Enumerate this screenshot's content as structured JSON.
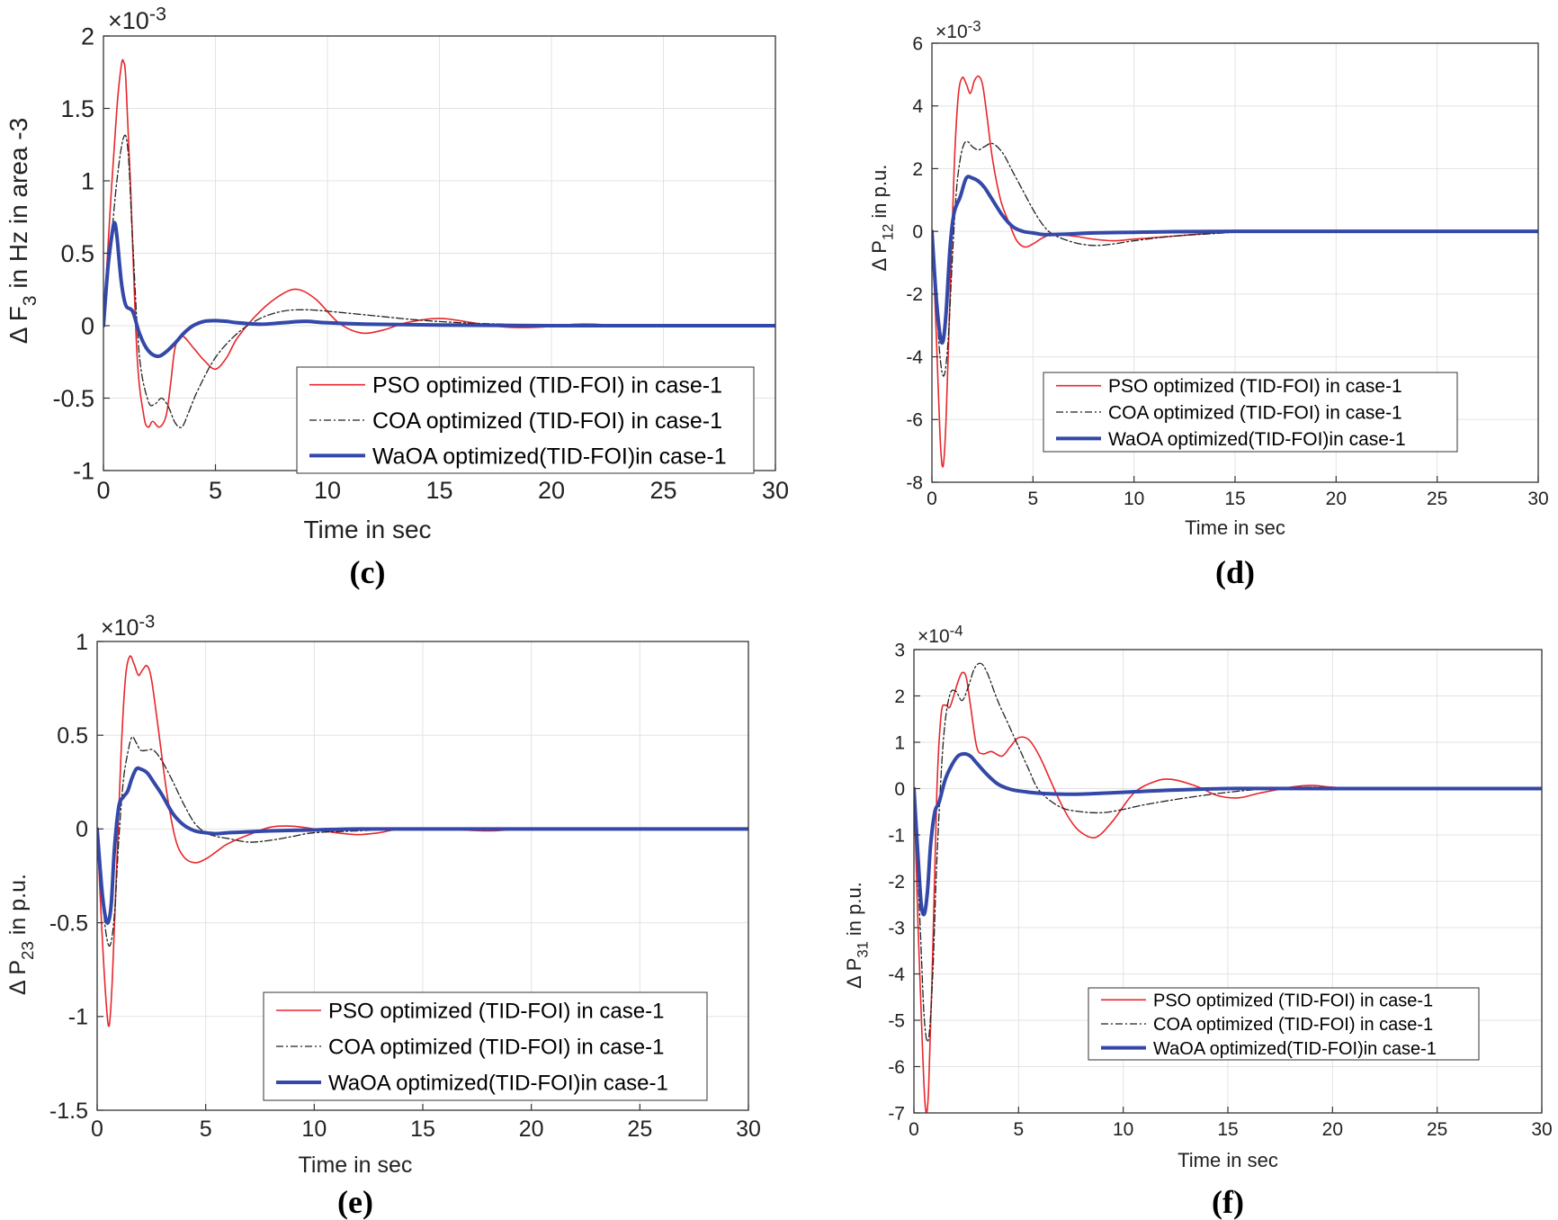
{
  "figure": {
    "panel_count": 4
  },
  "chart_data": [
    {
      "type": "line",
      "panel_label": "c",
      "ylabel_pre": "Δ F",
      "ylabel_sub": "3",
      "ylabel_post": "in Hz in area -3",
      "xlabel": "Time in sec",
      "multiplier_base": "×10",
      "multiplier_exp": "-3",
      "xlim": [
        0,
        30
      ],
      "ylim": [
        -1,
        2
      ],
      "xticks": [
        0,
        5,
        10,
        15,
        20,
        25,
        30
      ],
      "yticks": [
        -1,
        -0.5,
        0,
        0.5,
        1,
        1.5,
        2
      ],
      "ytick_labels": [
        "-1",
        "-0.5",
        "0",
        "0.5",
        "1",
        "1.5",
        "2"
      ],
      "series": [
        {
          "name": "PSO optimized (TID-FOI) in case-1",
          "color": "#e8262b",
          "dash": "",
          "width": 1.6,
          "x": [
            0,
            0.3,
            0.6,
            0.8,
            0.9,
            1.0,
            1.2,
            1.5,
            1.8,
            2.0,
            2.2,
            2.5,
            2.8,
            3.0,
            3.2,
            3.5,
            4.0,
            4.5,
            5.0,
            5.5,
            6.0,
            7.0,
            8.0,
            8.7,
            9.5,
            10.5,
            11.5,
            12.5,
            13.5,
            15,
            16.5,
            18,
            19.5,
            21,
            22,
            23,
            25,
            27,
            30
          ],
          "y": [
            0,
            0.8,
            1.5,
            1.8,
            1.82,
            1.7,
            1.0,
            -0.2,
            -0.62,
            -0.7,
            -0.66,
            -0.7,
            -0.62,
            -0.4,
            -0.15,
            -0.07,
            -0.15,
            -0.24,
            -0.3,
            -0.22,
            -0.08,
            0.1,
            0.22,
            0.25,
            0.18,
            0.02,
            -0.05,
            -0.03,
            0.02,
            0.05,
            0.02,
            -0.01,
            -0.01,
            0.01,
            0.01,
            0,
            0,
            0,
            0
          ]
        },
        {
          "name": "COA optimized (TID-FOI) in case-1",
          "color": "#222222",
          "dash": "8,3,2,3",
          "width": 1.3,
          "x": [
            0,
            0.3,
            0.6,
            0.9,
            1.1,
            1.3,
            1.6,
            2.0,
            2.3,
            2.6,
            2.9,
            3.2,
            3.5,
            3.8,
            4.2,
            5.0,
            6.0,
            7.0,
            8.0,
            9.0,
            10.0,
            12.0,
            14.0,
            16.0,
            18.0,
            20,
            22,
            25,
            30
          ],
          "y": [
            0,
            0.5,
            1.0,
            1.3,
            1.2,
            0.6,
            -0.2,
            -0.52,
            -0.54,
            -0.5,
            -0.56,
            -0.67,
            -0.7,
            -0.6,
            -0.45,
            -0.22,
            -0.05,
            0.05,
            0.1,
            0.11,
            0.1,
            0.07,
            0.04,
            0.02,
            0.01,
            0,
            0,
            0,
            0
          ]
        },
        {
          "name": "WaOA optimized(TID-FOI)in case-1",
          "color": "#3348a8",
          "dash": "",
          "width": 4,
          "x": [
            0,
            0.2,
            0.4,
            0.5,
            0.6,
            0.8,
            1.0,
            1.3,
            1.6,
            1.9,
            2.2,
            2.5,
            2.8,
            3.2,
            3.6,
            4.0,
            4.5,
            5.0,
            5.5,
            6.0,
            7.0,
            8.0,
            9.0,
            10.0,
            12.0,
            15.0,
            20,
            25,
            30
          ],
          "y": [
            0,
            0.4,
            0.65,
            0.71,
            0.62,
            0.3,
            0.14,
            0.1,
            -0.05,
            -0.15,
            -0.2,
            -0.21,
            -0.18,
            -0.12,
            -0.05,
            0,
            0.03,
            0.035,
            0.03,
            0.02,
            0.01,
            0.02,
            0.03,
            0.02,
            0.01,
            0.005,
            0,
            0,
            0
          ]
        }
      ]
    },
    {
      "type": "line",
      "panel_label": "d",
      "ylabel_pre": "Δ P",
      "ylabel_sub": "12",
      "ylabel_post": "in p.u.",
      "xlabel": "Time in sec",
      "multiplier_base": "×10",
      "multiplier_exp": "-3",
      "xlim": [
        0,
        30
      ],
      "ylim": [
        -8,
        6
      ],
      "xticks": [
        0,
        5,
        10,
        15,
        20,
        25,
        30
      ],
      "yticks": [
        -8,
        -6,
        -4,
        -2,
        0,
        2,
        4,
        6
      ],
      "ytick_labels": [
        "-8",
        "-6",
        "-4",
        "-2",
        "0",
        "2",
        "4",
        "6"
      ],
      "series": [
        {
          "name": "PSO optimized (TID-FOI) in case-1",
          "color": "#e8262b",
          "dash": "",
          "width": 1.6,
          "x": [
            0,
            0.2,
            0.4,
            0.55,
            0.7,
            0.9,
            1.1,
            1.3,
            1.5,
            1.7,
            1.9,
            2.1,
            2.3,
            2.5,
            2.7,
            3.0,
            3.4,
            3.8,
            4.2,
            4.6,
            5.0,
            5.5,
            6.0,
            7,
            8,
            9,
            10,
            12,
            14,
            16,
            18,
            22,
            30
          ],
          "y": [
            0,
            -3,
            -6.5,
            -7.5,
            -6,
            -2,
            2,
            4.3,
            4.9,
            4.7,
            4.4,
            4.8,
            4.95,
            4.7,
            3.8,
            2.3,
            1.0,
            0.3,
            -0.3,
            -0.5,
            -0.4,
            -0.2,
            -0.1,
            -0.15,
            -0.25,
            -0.3,
            -0.25,
            -0.15,
            -0.05,
            0,
            0,
            0,
            0
          ]
        },
        {
          "name": "COA optimized (TID-FOI) in case-1",
          "color": "#222222",
          "dash": "8,3,2,3",
          "width": 1.3,
          "x": [
            0,
            0.2,
            0.4,
            0.6,
            0.8,
            1.0,
            1.2,
            1.4,
            1.6,
            1.8,
            2.0,
            2.3,
            2.6,
            3.0,
            3.5,
            4.0,
            4.5,
            5.0,
            5.5,
            6.0,
            7,
            8,
            9,
            10,
            12,
            14,
            16,
            20,
            30
          ],
          "y": [
            0,
            -2,
            -4,
            -4.6,
            -3.5,
            -1,
            1.2,
            2.3,
            2.8,
            2.85,
            2.7,
            2.6,
            2.7,
            2.8,
            2.5,
            1.9,
            1.3,
            0.7,
            0.2,
            -0.1,
            -0.35,
            -0.45,
            -0.4,
            -0.3,
            -0.15,
            -0.07,
            0,
            0,
            0
          ]
        },
        {
          "name": "WaOA optimized(TID-FOI)in case-1",
          "color": "#3348a8",
          "dash": "",
          "width": 4,
          "x": [
            0,
            0.2,
            0.4,
            0.55,
            0.7,
            0.9,
            1.1,
            1.4,
            1.7,
            2.0,
            2.3,
            2.6,
            3.0,
            3.5,
            4.0,
            4.5,
            5.0,
            5.5,
            6.0,
            7,
            8,
            10,
            12,
            15,
            20,
            30
          ],
          "y": [
            0,
            -2,
            -3.3,
            -3.5,
            -2.6,
            -0.5,
            0.6,
            1.1,
            1.7,
            1.7,
            1.6,
            1.4,
            1.0,
            0.5,
            0.15,
            0,
            -0.05,
            -0.1,
            -0.1,
            -0.08,
            -0.05,
            -0.03,
            -0.01,
            0,
            0,
            0
          ]
        }
      ]
    },
    {
      "type": "line",
      "panel_label": "e",
      "ylabel_pre": "Δ P",
      "ylabel_sub": "23",
      "ylabel_post": "in p.u.",
      "xlabel": "Time in sec",
      "multiplier_base": "×10",
      "multiplier_exp": "-3",
      "xlim": [
        0,
        30
      ],
      "ylim": [
        -1.5,
        1
      ],
      "xticks": [
        0,
        5,
        10,
        15,
        20,
        25,
        30
      ],
      "yticks": [
        -1.5,
        -1,
        -0.5,
        0,
        0.5,
        1
      ],
      "ytick_labels": [
        "-1.5",
        "-1",
        "-0.5",
        "0",
        "0.5",
        "1"
      ],
      "series": [
        {
          "name": "PSO optimized (TID-FOI) in case-1",
          "color": "#e8262b",
          "dash": "",
          "width": 1.6,
          "x": [
            0,
            0.2,
            0.4,
            0.55,
            0.7,
            0.9,
            1.1,
            1.3,
            1.5,
            1.7,
            1.9,
            2.1,
            2.3,
            2.5,
            2.8,
            3.2,
            3.6,
            4.0,
            4.5,
            5.0,
            5.5,
            6.0,
            7,
            8,
            9,
            10,
            11,
            12,
            13,
            14,
            16,
            18,
            20,
            25,
            30
          ],
          "y": [
            0,
            -0.5,
            -0.9,
            -1.05,
            -0.8,
            -0.2,
            0.4,
            0.8,
            0.92,
            0.88,
            0.82,
            0.85,
            0.87,
            0.8,
            0.55,
            0.2,
            -0.05,
            -0.15,
            -0.18,
            -0.16,
            -0.12,
            -0.08,
            -0.03,
            0.01,
            0.015,
            0,
            -0.02,
            -0.03,
            -0.02,
            0,
            0,
            -0.01,
            0,
            0,
            0
          ]
        },
        {
          "name": "COA optimized (TID-FOI) in case-1",
          "color": "#222222",
          "dash": "8,3,2,3",
          "width": 1.3,
          "x": [
            0,
            0.2,
            0.4,
            0.6,
            0.8,
            1.0,
            1.2,
            1.4,
            1.6,
            1.8,
            2.0,
            2.3,
            2.6,
            3.0,
            3.5,
            4.0,
            4.5,
            5.0,
            5.5,
            6.0,
            7,
            8,
            9,
            10,
            12,
            14,
            16,
            20,
            30
          ],
          "y": [
            0,
            -0.3,
            -0.55,
            -0.62,
            -0.45,
            -0.05,
            0.25,
            0.4,
            0.49,
            0.46,
            0.42,
            0.42,
            0.42,
            0.36,
            0.25,
            0.13,
            0.03,
            -0.02,
            -0.04,
            -0.05,
            -0.07,
            -0.06,
            -0.04,
            -0.02,
            -0.01,
            0,
            0,
            0,
            0
          ]
        },
        {
          "name": "WaOA optimized(TID-FOI)in case-1",
          "color": "#3348a8",
          "dash": "",
          "width": 4,
          "x": [
            0,
            0.2,
            0.35,
            0.5,
            0.65,
            0.8,
            1.0,
            1.2,
            1.4,
            1.6,
            1.8,
            2.0,
            2.3,
            2.6,
            3.0,
            3.5,
            4.0,
            4.5,
            5.0,
            5.5,
            6.0,
            7,
            8,
            10,
            12,
            15,
            20,
            30
          ],
          "y": [
            0,
            -0.3,
            -0.45,
            -0.5,
            -0.4,
            -0.1,
            0.12,
            0.17,
            0.2,
            0.27,
            0.32,
            0.32,
            0.3,
            0.25,
            0.18,
            0.08,
            0.02,
            -0.01,
            -0.02,
            -0.025,
            -0.02,
            -0.015,
            -0.01,
            -0.005,
            0,
            0,
            0,
            0
          ]
        }
      ]
    },
    {
      "type": "line",
      "panel_label": "f",
      "ylabel_pre": "Δ P",
      "ylabel_sub": "31",
      "ylabel_post": "in p.u.",
      "xlabel": "Time in sec",
      "multiplier_base": "×10",
      "multiplier_exp": "-4",
      "xlim": [
        0,
        30
      ],
      "ylim": [
        -7,
        3
      ],
      "xticks": [
        0,
        5,
        10,
        15,
        20,
        25,
        30
      ],
      "yticks": [
        -7,
        -6,
        -5,
        -4,
        -3,
        -2,
        -1,
        0,
        1,
        2,
        3
      ],
      "ytick_labels": [
        "-7",
        "-6",
        "-5",
        "-4",
        "-3",
        "-2",
        "-1",
        "0",
        "1",
        "2",
        "3"
      ],
      "series": [
        {
          "name": "PSO optimized (TID-FOI) in case-1",
          "color": "#e8262b",
          "dash": "",
          "width": 1.6,
          "x": [
            0,
            0.2,
            0.4,
            0.55,
            0.7,
            0.9,
            1.1,
            1.3,
            1.5,
            1.7,
            1.9,
            2.1,
            2.3,
            2.5,
            2.7,
            3.0,
            3.3,
            3.7,
            4.2,
            4.6,
            5.0,
            5.5,
            6.0,
            6.5,
            7.0,
            7.5,
            8.0,
            8.7,
            9.5,
            10.5,
            11.5,
            12.3,
            13.5,
            14.5,
            15.5,
            16.5,
            18,
            19,
            20,
            22,
            25,
            30
          ],
          "y": [
            0,
            -3,
            -5.5,
            -6.9,
            -6.5,
            -3.5,
            0,
            1.6,
            1.8,
            1.75,
            2.0,
            2.3,
            2.5,
            2.4,
            1.8,
            0.9,
            0.75,
            0.8,
            0.7,
            0.9,
            1.1,
            1.05,
            0.7,
            0.2,
            -0.3,
            -0.7,
            -0.95,
            -1.05,
            -0.7,
            -0.1,
            0.15,
            0.2,
            0.05,
            -0.15,
            -0.2,
            -0.1,
            0.03,
            0.07,
            0.03,
            -0.02,
            0,
            0
          ]
        },
        {
          "name": "COA optimized (TID-FOI) in case-1",
          "color": "#222222",
          "dash": "8,3,2,3",
          "width": 1.3,
          "x": [
            0,
            0.3,
            0.5,
            0.7,
            0.9,
            1.1,
            1.4,
            1.7,
            2.0,
            2.3,
            2.6,
            2.9,
            3.2,
            3.5,
            4.0,
            4.5,
            5.0,
            5.5,
            6.0,
            7.0,
            8.0,
            9.0,
            10.0,
            11.0,
            13.0,
            15.0,
            17.0,
            19.0,
            22,
            25,
            30
          ],
          "y": [
            0,
            -3,
            -5.0,
            -5.4,
            -4.0,
            -1.5,
            1.0,
            2.0,
            2.1,
            1.9,
            2.2,
            2.6,
            2.7,
            2.5,
            1.9,
            1.4,
            0.9,
            0.4,
            -0.05,
            -0.4,
            -0.5,
            -0.52,
            -0.45,
            -0.35,
            -0.2,
            -0.08,
            0,
            0.03,
            0,
            0,
            0
          ]
        },
        {
          "name": "WaOA optimized(TID-FOI)in case-1",
          "color": "#3348a8",
          "dash": "",
          "width": 4,
          "x": [
            0,
            0.2,
            0.35,
            0.5,
            0.65,
            0.8,
            1.0,
            1.2,
            1.5,
            1.8,
            2.1,
            2.4,
            2.7,
            3.0,
            3.5,
            4.0,
            4.5,
            5.0,
            6.0,
            7.0,
            8.0,
            9.0,
            10.0,
            12.0,
            15.0,
            20,
            30
          ],
          "y": [
            0,
            -1.5,
            -2.5,
            -2.7,
            -2.2,
            -1.2,
            -0.5,
            -0.3,
            0.2,
            0.5,
            0.7,
            0.75,
            0.7,
            0.55,
            0.3,
            0.1,
            0,
            -0.05,
            -0.1,
            -0.12,
            -0.12,
            -0.1,
            -0.08,
            -0.04,
            0,
            0,
            0
          ]
        }
      ]
    }
  ]
}
